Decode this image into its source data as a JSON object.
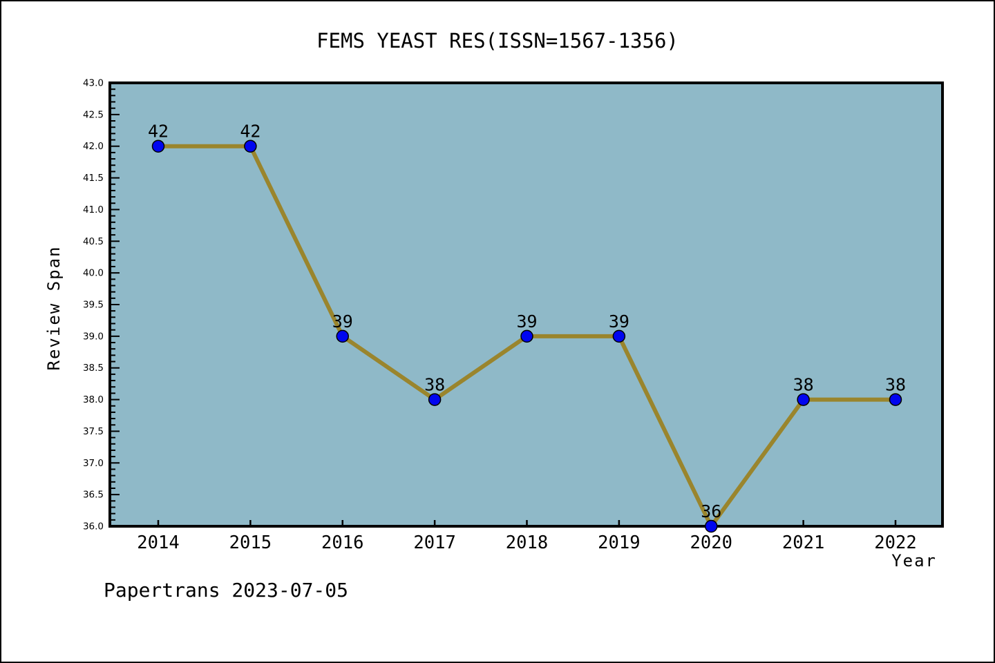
{
  "page": {
    "watermark": "Papertrans 2023-07-05"
  },
  "chart_data": {
    "type": "line",
    "title": "FEMS YEAST RES(ISSN=1567-1356)",
    "xlabel": "Year",
    "ylabel": "Review Span",
    "categories": [
      "2014",
      "2015",
      "2016",
      "2017",
      "2018",
      "2019",
      "2020",
      "2021",
      "2022"
    ],
    "values": [
      42,
      42,
      39,
      38,
      39,
      39,
      36,
      38,
      38
    ],
    "point_labels": [
      "42",
      "42",
      "39",
      "38",
      "39",
      "39",
      "36",
      "38",
      "38"
    ],
    "ylim": [
      36.0,
      43.0
    ],
    "ytick_step": 0.5,
    "ytick_minor_step": 0.1,
    "ytick_labels": [
      "36.0",
      "36.5",
      "37.0",
      "37.5",
      "38.0",
      "38.5",
      "39.0",
      "39.5",
      "40.0",
      "40.5",
      "41.0",
      "41.5",
      "42.0",
      "42.5",
      "43.0"
    ],
    "grid": false,
    "legend": "none",
    "colors": {
      "page_background": "#ffffff",
      "plot_background": "#8fb9c8",
      "line": "#9a852d",
      "marker_fill": "#0005f0",
      "marker_edge": "#000000",
      "frame": "#000000",
      "text": "#000000"
    }
  }
}
